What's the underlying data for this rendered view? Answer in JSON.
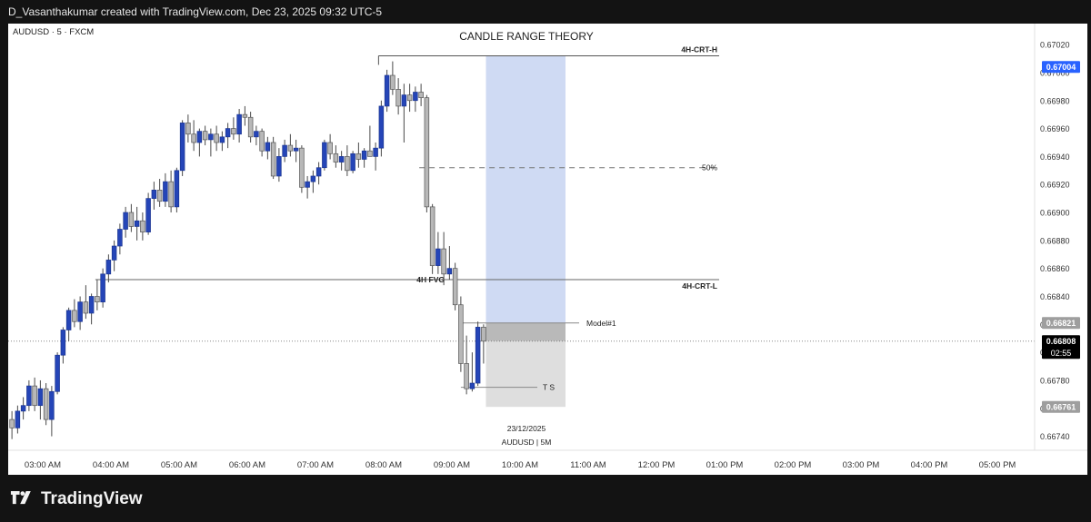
{
  "header": {
    "credit": "D_Vasanthakumar created with TradingView.com, Dec 23, 2025 09:32 UTC-5"
  },
  "brand": {
    "name": "TradingView"
  },
  "chart_data": {
    "type": "candlestick",
    "symbol_label": "AUDUSD · 5 · FXCM",
    "title": "CANDLE RANGE THEORY",
    "watermark": {
      "date": "23/12/2025",
      "symbol": "AUDUSD | 5M"
    },
    "y_ticks": [
      0.6702,
      0.67,
      0.6698,
      0.6696,
      0.6694,
      0.6692,
      0.669,
      0.6688,
      0.6686,
      0.6684,
      0.6682,
      0.668,
      0.6678,
      0.6676,
      0.6674
    ],
    "ylim": [
      0.6673,
      0.67035
    ],
    "x_labels": [
      "03:00 AM",
      "04:00 AM",
      "05:00 AM",
      "06:00 AM",
      "07:00 AM",
      "08:00 AM",
      "09:00 AM",
      "10:00 AM",
      "11:00 AM",
      "12:00 PM",
      "01:00 PM",
      "02:00 PM",
      "03:00 PM",
      "04:00 PM",
      "05:00 PM"
    ],
    "price_tags": [
      {
        "price": 0.67004,
        "text": "0.67004",
        "style": "blue"
      },
      {
        "price": 0.66821,
        "text": "0.66821",
        "style": "grey"
      },
      {
        "price": 0.66808,
        "text": "0.66808",
        "sub": "02:55",
        "style": "black"
      },
      {
        "price": 0.66761,
        "text": "0.66761",
        "style": "grey"
      }
    ],
    "levels": {
      "crt_high": {
        "price": 0.67012,
        "label": "4H-CRT-H"
      },
      "crt_low": {
        "price": 0.66852,
        "label": "4H-CRT-L"
      },
      "fvg": {
        "price": 0.66852,
        "label": "4H FVG"
      },
      "mid": {
        "price": 0.66932,
        "label": "50%"
      },
      "model": {
        "price": 0.66821,
        "label": "Model#1"
      },
      "ts": {
        "price": 0.66775,
        "label": "T S"
      },
      "current": {
        "price": 0.66808
      }
    },
    "zones": {
      "blue": {
        "from": "09:30 AM",
        "to": "10:40 AM",
        "top": 0.67012,
        "bottom": 0.66821
      },
      "grey_dark": {
        "top": 0.66821,
        "bottom": 0.66808
      },
      "grey_light": {
        "top": 0.66808,
        "bottom": 0.66761
      }
    },
    "colors": {
      "bull": "#2545b8",
      "bear": "#b8b8b8",
      "wick": "#4a4a4a",
      "blue_zone": "#cfdaf3",
      "grey_dark": "#b9b9b9",
      "grey_light": "#dedede",
      "tag_blue": "#2962ff"
    },
    "candles": [
      [
        0.66752,
        0.66758,
        0.66738,
        0.66746
      ],
      [
        0.66746,
        0.66762,
        0.66742,
        0.66758
      ],
      [
        0.66758,
        0.66768,
        0.66752,
        0.66762
      ],
      [
        0.66762,
        0.6678,
        0.66758,
        0.66776
      ],
      [
        0.66776,
        0.66782,
        0.66758,
        0.66762
      ],
      [
        0.66762,
        0.6678,
        0.66752,
        0.66774
      ],
      [
        0.66774,
        0.66778,
        0.66748,
        0.66752
      ],
      [
        0.66752,
        0.66776,
        0.6674,
        0.66772
      ],
      [
        0.66772,
        0.668,
        0.6677,
        0.66798
      ],
      [
        0.66798,
        0.66818,
        0.66792,
        0.66816
      ],
      [
        0.66816,
        0.66832,
        0.66808,
        0.6683
      ],
      [
        0.6683,
        0.66838,
        0.66818,
        0.66822
      ],
      [
        0.66822,
        0.6684,
        0.66816,
        0.66836
      ],
      [
        0.66836,
        0.66848,
        0.66824,
        0.66828
      ],
      [
        0.66828,
        0.66842,
        0.6682,
        0.6684
      ],
      [
        0.6684,
        0.66852,
        0.6683,
        0.66836
      ],
      [
        0.66836,
        0.6686,
        0.66832,
        0.66856
      ],
      [
        0.66856,
        0.6687,
        0.6685,
        0.66866
      ],
      [
        0.66866,
        0.6688,
        0.66858,
        0.66876
      ],
      [
        0.66876,
        0.66892,
        0.6687,
        0.66888
      ],
      [
        0.66888,
        0.66904,
        0.66882,
        0.669
      ],
      [
        0.669,
        0.66906,
        0.66886,
        0.6689
      ],
      [
        0.6689,
        0.66904,
        0.6688,
        0.66894
      ],
      [
        0.66894,
        0.669,
        0.6688,
        0.66886
      ],
      [
        0.66886,
        0.66914,
        0.66884,
        0.6691
      ],
      [
        0.6691,
        0.66922,
        0.66902,
        0.66916
      ],
      [
        0.66916,
        0.66924,
        0.66904,
        0.66908
      ],
      [
        0.66908,
        0.66928,
        0.66904,
        0.66922
      ],
      [
        0.66922,
        0.6693,
        0.669,
        0.66904
      ],
      [
        0.66904,
        0.66932,
        0.669,
        0.6693
      ],
      [
        0.6693,
        0.66966,
        0.66926,
        0.66964
      ],
      [
        0.66964,
        0.6697,
        0.6695,
        0.66956
      ],
      [
        0.66956,
        0.66966,
        0.66944,
        0.6695
      ],
      [
        0.6695,
        0.6696,
        0.6694,
        0.66958
      ],
      [
        0.66958,
        0.66962,
        0.66948,
        0.66952
      ],
      [
        0.66952,
        0.6696,
        0.6694,
        0.66956
      ],
      [
        0.66956,
        0.66962,
        0.66944,
        0.6695
      ],
      [
        0.6695,
        0.66958,
        0.66944,
        0.66954
      ],
      [
        0.66954,
        0.66964,
        0.66946,
        0.6696
      ],
      [
        0.6696,
        0.66968,
        0.66952,
        0.66956
      ],
      [
        0.66956,
        0.66974,
        0.6695,
        0.6697
      ],
      [
        0.6697,
        0.66976,
        0.66962,
        0.66968
      ],
      [
        0.66968,
        0.66972,
        0.6695,
        0.66954
      ],
      [
        0.66954,
        0.66962,
        0.66948,
        0.66958
      ],
      [
        0.66958,
        0.6696,
        0.6694,
        0.66944
      ],
      [
        0.66944,
        0.66954,
        0.66938,
        0.6695
      ],
      [
        0.6695,
        0.66954,
        0.66924,
        0.66926
      ],
      [
        0.66926,
        0.66946,
        0.66922,
        0.6694
      ],
      [
        0.6694,
        0.66952,
        0.66936,
        0.66948
      ],
      [
        0.66948,
        0.66956,
        0.6694,
        0.66944
      ],
      [
        0.66944,
        0.66952,
        0.66936,
        0.66946
      ],
      [
        0.66946,
        0.66948,
        0.66914,
        0.66918
      ],
      [
        0.66918,
        0.66926,
        0.6691,
        0.66922
      ],
      [
        0.66922,
        0.6693,
        0.66914,
        0.66926
      ],
      [
        0.66926,
        0.66936,
        0.6692,
        0.66932
      ],
      [
        0.66932,
        0.66952,
        0.6693,
        0.6695
      ],
      [
        0.6695,
        0.66956,
        0.66938,
        0.66942
      ],
      [
        0.66942,
        0.66948,
        0.66932,
        0.66936
      ],
      [
        0.66936,
        0.66944,
        0.6693,
        0.6694
      ],
      [
        0.6694,
        0.66948,
        0.66926,
        0.6693
      ],
      [
        0.6693,
        0.66944,
        0.66928,
        0.66942
      ],
      [
        0.66942,
        0.6695,
        0.66932,
        0.66938
      ],
      [
        0.66938,
        0.66946,
        0.66932,
        0.66944
      ],
      [
        0.66944,
        0.66962,
        0.6694,
        0.6694
      ],
      [
        0.6694,
        0.6695,
        0.6693,
        0.66946
      ],
      [
        0.66946,
        0.6698,
        0.6694,
        0.66976
      ],
      [
        0.66976,
        0.67002,
        0.66972,
        0.66998
      ],
      [
        0.66998,
        0.67008,
        0.66984,
        0.66988
      ],
      [
        0.66988,
        0.66996,
        0.6697,
        0.66976
      ],
      [
        0.66976,
        0.66992,
        0.6695,
        0.66984
      ],
      [
        0.66984,
        0.66992,
        0.66972,
        0.6698
      ],
      [
        0.6698,
        0.6699,
        0.66972,
        0.66986
      ],
      [
        0.66986,
        0.66992,
        0.66976,
        0.66982
      ],
      [
        0.66982,
        0.66984,
        0.669,
        0.66904
      ],
      [
        0.66904,
        0.66906,
        0.66856,
        0.66862
      ],
      [
        0.66862,
        0.66886,
        0.66856,
        0.66874
      ],
      [
        0.66874,
        0.66886,
        0.66848,
        0.66856
      ],
      [
        0.66856,
        0.66876,
        0.66852,
        0.6686
      ],
      [
        0.6686,
        0.66864,
        0.6683,
        0.66834
      ],
      [
        0.66834,
        0.6684,
        0.66786,
        0.66792
      ],
      [
        0.66792,
        0.66812,
        0.6677,
        0.66774
      ],
      [
        0.66774,
        0.668,
        0.66772,
        0.66778
      ],
      [
        0.66778,
        0.66822,
        0.66776,
        0.66818
      ],
      [
        0.66818,
        0.6682,
        0.66792,
        0.66808
      ]
    ]
  }
}
